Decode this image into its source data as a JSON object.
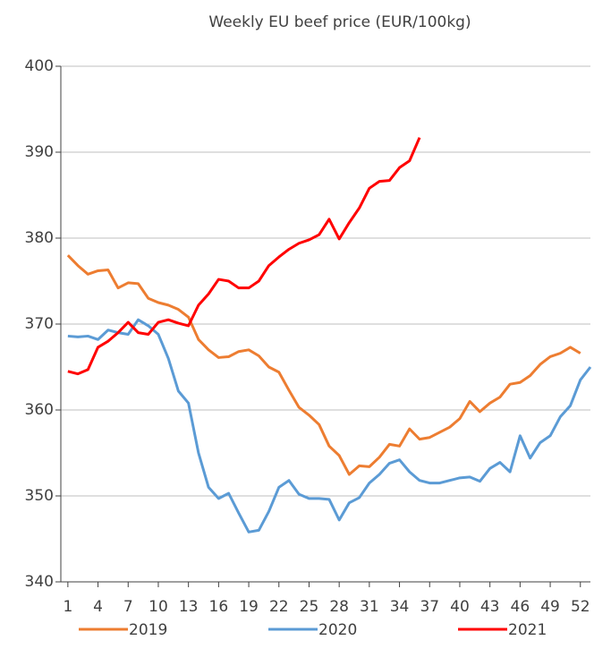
{
  "chart_data": {
    "type": "line",
    "title": "Weekly EU beef price (EUR/100kg)",
    "x": [
      1,
      2,
      3,
      4,
      5,
      6,
      7,
      8,
      9,
      10,
      11,
      12,
      13,
      14,
      15,
      16,
      17,
      18,
      19,
      20,
      21,
      22,
      23,
      24,
      25,
      26,
      27,
      28,
      29,
      30,
      31,
      32,
      33,
      34,
      35,
      36,
      37,
      38,
      39,
      40,
      41,
      42,
      43,
      44,
      45,
      46,
      47,
      48,
      49,
      50,
      51,
      52,
      53
    ],
    "xlim": [
      0.3,
      53
    ],
    "xticks": [
      1,
      4,
      7,
      10,
      13,
      16,
      19,
      22,
      25,
      28,
      31,
      34,
      37,
      40,
      43,
      46,
      49,
      52
    ],
    "ylim": [
      340,
      400
    ],
    "yticks": [
      340,
      350,
      360,
      370,
      380,
      390,
      400
    ],
    "grid": true,
    "legend": "bottom",
    "series": [
      {
        "name": "2019",
        "color": "#ed7d31",
        "values": [
          378,
          376.8,
          375.8,
          376.2,
          376.3,
          374.2,
          374.8,
          374.7,
          373,
          372.5,
          372.2,
          371.7,
          370.8,
          368.2,
          367,
          366.1,
          366.2,
          366.8,
          367,
          366.3,
          365,
          364.4,
          362.3,
          360.3,
          359.4,
          358.3,
          355.8,
          354.7,
          352.5,
          353.5,
          353.4,
          354.5,
          356,
          355.8,
          357.8,
          356.6,
          356.8,
          357.4,
          358,
          359,
          361,
          359.8,
          360.8,
          361.5,
          363,
          363.2,
          364,
          365.3,
          366.2,
          366.6,
          367.3,
          366.6,
          null
        ]
      },
      {
        "name": "2020",
        "color": "#5b9bd5",
        "values": [
          368.6,
          368.5,
          368.6,
          368.2,
          369.3,
          369,
          368.8,
          370.5,
          369.8,
          368.8,
          366,
          362.2,
          360.8,
          355,
          351,
          349.7,
          350.3,
          348,
          345.8,
          346,
          348.2,
          351,
          351.8,
          350.2,
          349.7,
          349.7,
          349.6,
          347.2,
          349.2,
          349.8,
          351.5,
          352.5,
          353.8,
          354.2,
          352.8,
          351.8,
          351.5,
          351.5,
          351.8,
          352.1,
          352.2,
          351.7,
          353.2,
          353.9,
          352.8,
          357,
          354.4,
          356.2,
          357,
          359.2,
          360.5,
          363.5,
          365
        ]
      },
      {
        "name": "2021",
        "color": "#ff0000",
        "values": [
          364.5,
          364.2,
          364.7,
          367.3,
          368,
          369,
          370.2,
          369,
          368.8,
          370.2,
          370.5,
          370.1,
          369.8,
          372.2,
          373.5,
          375.2,
          375,
          374.2,
          374.2,
          375,
          376.8,
          377.8,
          378.7,
          379.4,
          379.8,
          380.4,
          382.2,
          379.9,
          381.8,
          383.5,
          385.8,
          386.6,
          386.7,
          388.2,
          389,
          391.7,
          null,
          null,
          null,
          null,
          null,
          null,
          null,
          null,
          null,
          null,
          null,
          null,
          null,
          null,
          null,
          null,
          null
        ]
      }
    ]
  }
}
